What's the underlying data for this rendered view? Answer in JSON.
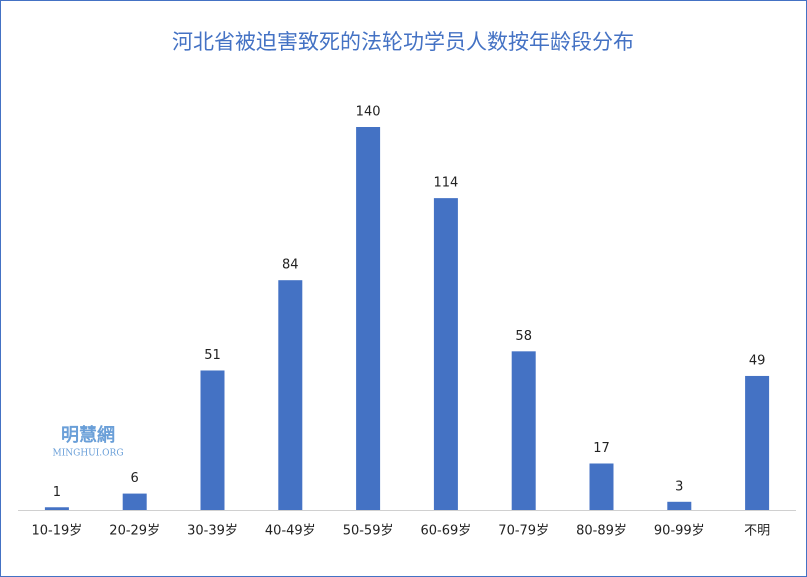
{
  "chart_data": {
    "type": "bar",
    "title": "河北省被迫害致死的法轮功学员人数按年龄段分布",
    "categories": [
      "10-19岁",
      "20-29岁",
      "30-39岁",
      "40-49岁",
      "50-59岁",
      "60-69岁",
      "70-79岁",
      "80-89岁",
      "90-99岁",
      "不明"
    ],
    "values": [
      1,
      6,
      51,
      84,
      140,
      114,
      58,
      17,
      3,
      49
    ],
    "color": "#4472c4",
    "watermark": [
      "明慧網",
      "MINGHUI.ORG"
    ]
  }
}
